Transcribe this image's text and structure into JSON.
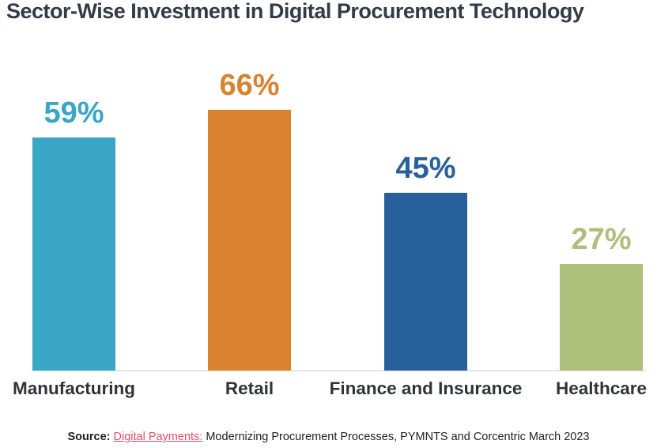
{
  "title": "Sector-Wise Investment in Digital Procurement Technology",
  "chart_data": {
    "type": "bar",
    "title": "Sector-Wise Investment in Digital Procurement Technology",
    "categories": [
      "Manufacturing",
      "Retail",
      "Finance and Insurance",
      "Healthcare"
    ],
    "values": [
      59,
      66,
      45,
      27
    ],
    "value_labels": [
      "59%",
      "66%",
      "45%",
      "27%"
    ],
    "colors": [
      "#3AA6C6",
      "#D9822F",
      "#27609B",
      "#ADBF7B"
    ],
    "xlabel": "",
    "ylabel": "",
    "ylim": [
      0,
      70
    ],
    "grid": false,
    "legend": "none",
    "value_label_position": "above-bar",
    "baseline_color": "#E3E3E3"
  },
  "source": {
    "prefix": "Source:",
    "link": "Digital Payments:",
    "rest": " Modernizing Procurement Processes, PYMNTS and Corcentric March 2023"
  },
  "colors": {
    "title_text": "#333B46",
    "category_text": "#2F3437",
    "source_text": "#1F1F1F",
    "source_link": "#E84C66",
    "background": "#FFFFFF"
  }
}
